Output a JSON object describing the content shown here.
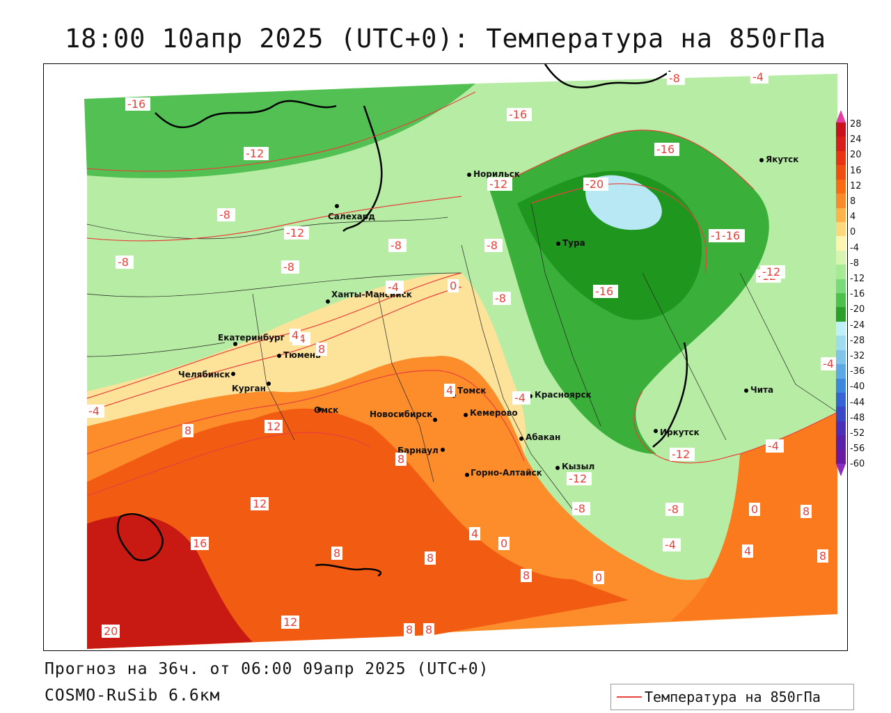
{
  "title": "18:00 10апр 2025 (UTC+0): Температура на 850гПа",
  "footer": {
    "forecast": "Прогноз на 36ч. от 06:00 09апр 2025 (UTC+0)",
    "model": "COSMO-RuSib 6.6км"
  },
  "legend": {
    "label": "Температура на 850гПа",
    "line_color": "#e8403a"
  },
  "colorbar": {
    "labels": [
      "28",
      "24",
      "20",
      "16",
      "12",
      "8",
      "4",
      "0",
      "-4",
      "-8",
      "-12",
      "-16",
      "-20",
      "-24",
      "-28",
      "-32",
      "-36",
      "-40",
      "-44",
      "-48",
      "-52",
      "-56",
      "-60"
    ],
    "colors": [
      "#c8101e",
      "#d81e1a",
      "#e83412",
      "#f04e10",
      "#f86a14",
      "#fb8a2a",
      "#fdb24a",
      "#fcd77e",
      "#fff4b0",
      "#d6f5b0",
      "#a6eb94",
      "#78da78",
      "#4cc24c",
      "#2aa02a",
      "#bff0f8",
      "#a0dcf0",
      "#80c4ec",
      "#5ea8e6",
      "#3c88e0",
      "#3664d4",
      "#3a48c8",
      "#4a30b8",
      "#5a20a8",
      "#6a1aa0"
    ]
  },
  "cities": [
    {
      "name": "Якутск"
    },
    {
      "name": "Норильск"
    },
    {
      "name": "Салехард"
    },
    {
      "name": "Тура"
    },
    {
      "name": "Ханты-Мансийск"
    },
    {
      "name": "Екатеринбург"
    },
    {
      "name": "Тюмень"
    },
    {
      "name": "Челябинск"
    },
    {
      "name": "Курган"
    },
    {
      "name": "Омск"
    },
    {
      "name": "Томск"
    },
    {
      "name": "Новосибирск"
    },
    {
      "name": "Кемерово"
    },
    {
      "name": "Красноярск"
    },
    {
      "name": "Барнаул"
    },
    {
      "name": "Абакан"
    },
    {
      "name": "Горно-Алтайск"
    },
    {
      "name": "Кызыл"
    },
    {
      "name": "Иркутск"
    },
    {
      "name": "Чита"
    }
  ],
  "isotherm_labels": [
    "-16",
    "-12",
    "-8",
    "-8",
    "-16",
    "-16",
    "-8",
    "-4",
    "-8",
    "-16",
    "-12",
    "-20",
    "-16",
    "-12",
    "-8",
    "-4",
    "0",
    "-8",
    "-16",
    "-12",
    "-8",
    "-4",
    "-4",
    "-4",
    "8",
    "12",
    "12",
    "16",
    "20",
    "12",
    "8",
    "8",
    "4",
    "0",
    "8",
    "0",
    "-4",
    "-8",
    "-8",
    "-12",
    "8",
    "4",
    "8",
    "0",
    "-4",
    "8",
    "8",
    "4",
    "-12",
    "4",
    "8",
    "8",
    "-12",
    "-4"
  ]
}
